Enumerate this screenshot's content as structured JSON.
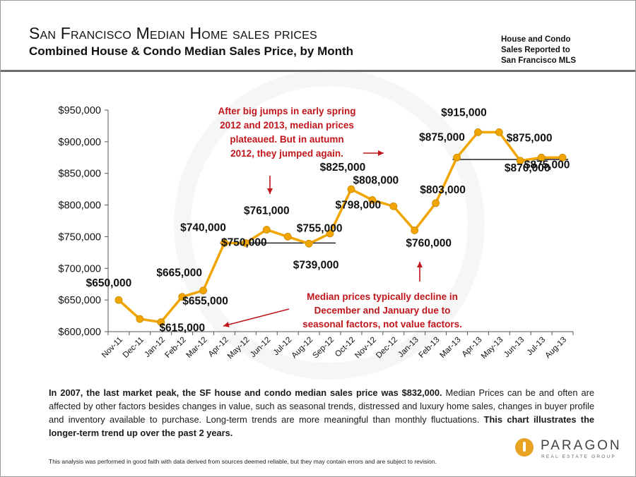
{
  "header": {
    "title": "San Francisco Median Home sales prices",
    "subtitle": "Combined House & Condo Median Sales Price, by Month",
    "source_note_lines": [
      "House and Condo",
      "Sales Reported to",
      "San Francisco MLS"
    ]
  },
  "chart_data": {
    "type": "line",
    "title": "Combined House & Condo Median Sales Price, by Month",
    "xlabel": "",
    "ylabel": "",
    "ylim": [
      600000,
      950000
    ],
    "ytick_labels": [
      "$600,000",
      "$650,000",
      "$700,000",
      "$750,000",
      "$800,000",
      "$850,000",
      "$900,000",
      "$950,000"
    ],
    "yticks": [
      600000,
      650000,
      700000,
      750000,
      800000,
      850000,
      900000,
      950000
    ],
    "categories": [
      "Nov-11",
      "Dec-11",
      "Jan-12",
      "Feb-12",
      "Mar-12",
      "Apr-12",
      "May-12",
      "Jun-12",
      "Jul-12",
      "Aug-12",
      "Sep-12",
      "Oct-12",
      "Nov-12",
      "Dec-12",
      "Jan-13",
      "Feb-13",
      "Mar-13",
      "Apr-13",
      "May-13",
      "Jun-13",
      "Jul-13",
      "Aug-13"
    ],
    "series": [
      {
        "values": [
          650000,
          620000,
          615000,
          655000,
          665000,
          740000,
          740000,
          761000,
          750000,
          739000,
          755000,
          825000,
          808000,
          798000,
          760000,
          803000,
          875000,
          915000,
          915000,
          870000,
          875000,
          875000
        ],
        "color": "#f0a500"
      }
    ],
    "data_labels": [
      {
        "category": "Nov-11",
        "text": "$650,000"
      },
      {
        "category": "Jan-12",
        "text": "$615,000"
      },
      {
        "category": "Feb-12",
        "text": "$665,000"
      },
      {
        "category": "Mar-12",
        "text": "$655,000"
      },
      {
        "category": "Apr-12",
        "text": "$740,000"
      },
      {
        "category": "Jun-12",
        "text": "$761,000"
      },
      {
        "category": "Jun-12",
        "text": "$750,000"
      },
      {
        "category": "Aug-12",
        "text": "$755,000"
      },
      {
        "category": "Aug-12",
        "text": "$739,000"
      },
      {
        "category": "Oct-12",
        "text": "$825,000"
      },
      {
        "category": "Nov-12",
        "text": "$808,000"
      },
      {
        "category": "Nov-12",
        "text": "$798,000"
      },
      {
        "category": "Jan-13",
        "text": "$760,000"
      },
      {
        "category": "Feb-13",
        "text": "$803,000"
      },
      {
        "category": "Mar-13",
        "text": "$875,000"
      },
      {
        "category": "Apr-13",
        "text": "$915,000"
      },
      {
        "category": "Jun-13",
        "text": "$870,000"
      },
      {
        "category": "Jul-13",
        "text": "$875,000"
      },
      {
        "category": "Aug-13",
        "text": "$875,000"
      }
    ],
    "reference_lines": [
      {
        "from": "Apr-12",
        "to": "Sep-12",
        "value": 740000
      },
      {
        "from": "Mar-13",
        "to": "Aug-13",
        "value": 872000
      }
    ],
    "annotations": [
      {
        "lines": [
          "After big jumps in early spring",
          "2012 and 2013, median prices",
          "plateaued. But in autumn",
          "2012, they jumped again."
        ],
        "color": "#c0161c"
      },
      {
        "lines": [
          "Median prices typically decline in",
          "December and January due to",
          "seasonal factors, not value factors."
        ],
        "color": "#c0161c"
      }
    ],
    "grid": false,
    "legend": "none"
  },
  "body_text": {
    "lead_bold": "In 2007, the last market peak, the SF house and condo median sales price was $832,000.",
    "middle": " Median Prices can be and often are affected by other factors besides changes in value, such as seasonal trends, distressed and luxury home sales, changes in buyer profile and inventory available to purchase. Long-term trends are more meaningful than monthly fluctuations. ",
    "tail_bold": "This chart illustrates the longer-term trend up over the past 2 years."
  },
  "footer": {
    "disclaimer": "This analysis was performed in good faith with data derived from sources deemed reliable, but they may contain errors and are subject to revision.",
    "logo_word": "PARAGON",
    "logo_sub": "REAL ESTATE GROUP",
    "brand_color": "#e8a323"
  },
  "colors": {
    "line": "#f0a500",
    "annotation": "#c0161c",
    "axis": "#555555"
  }
}
